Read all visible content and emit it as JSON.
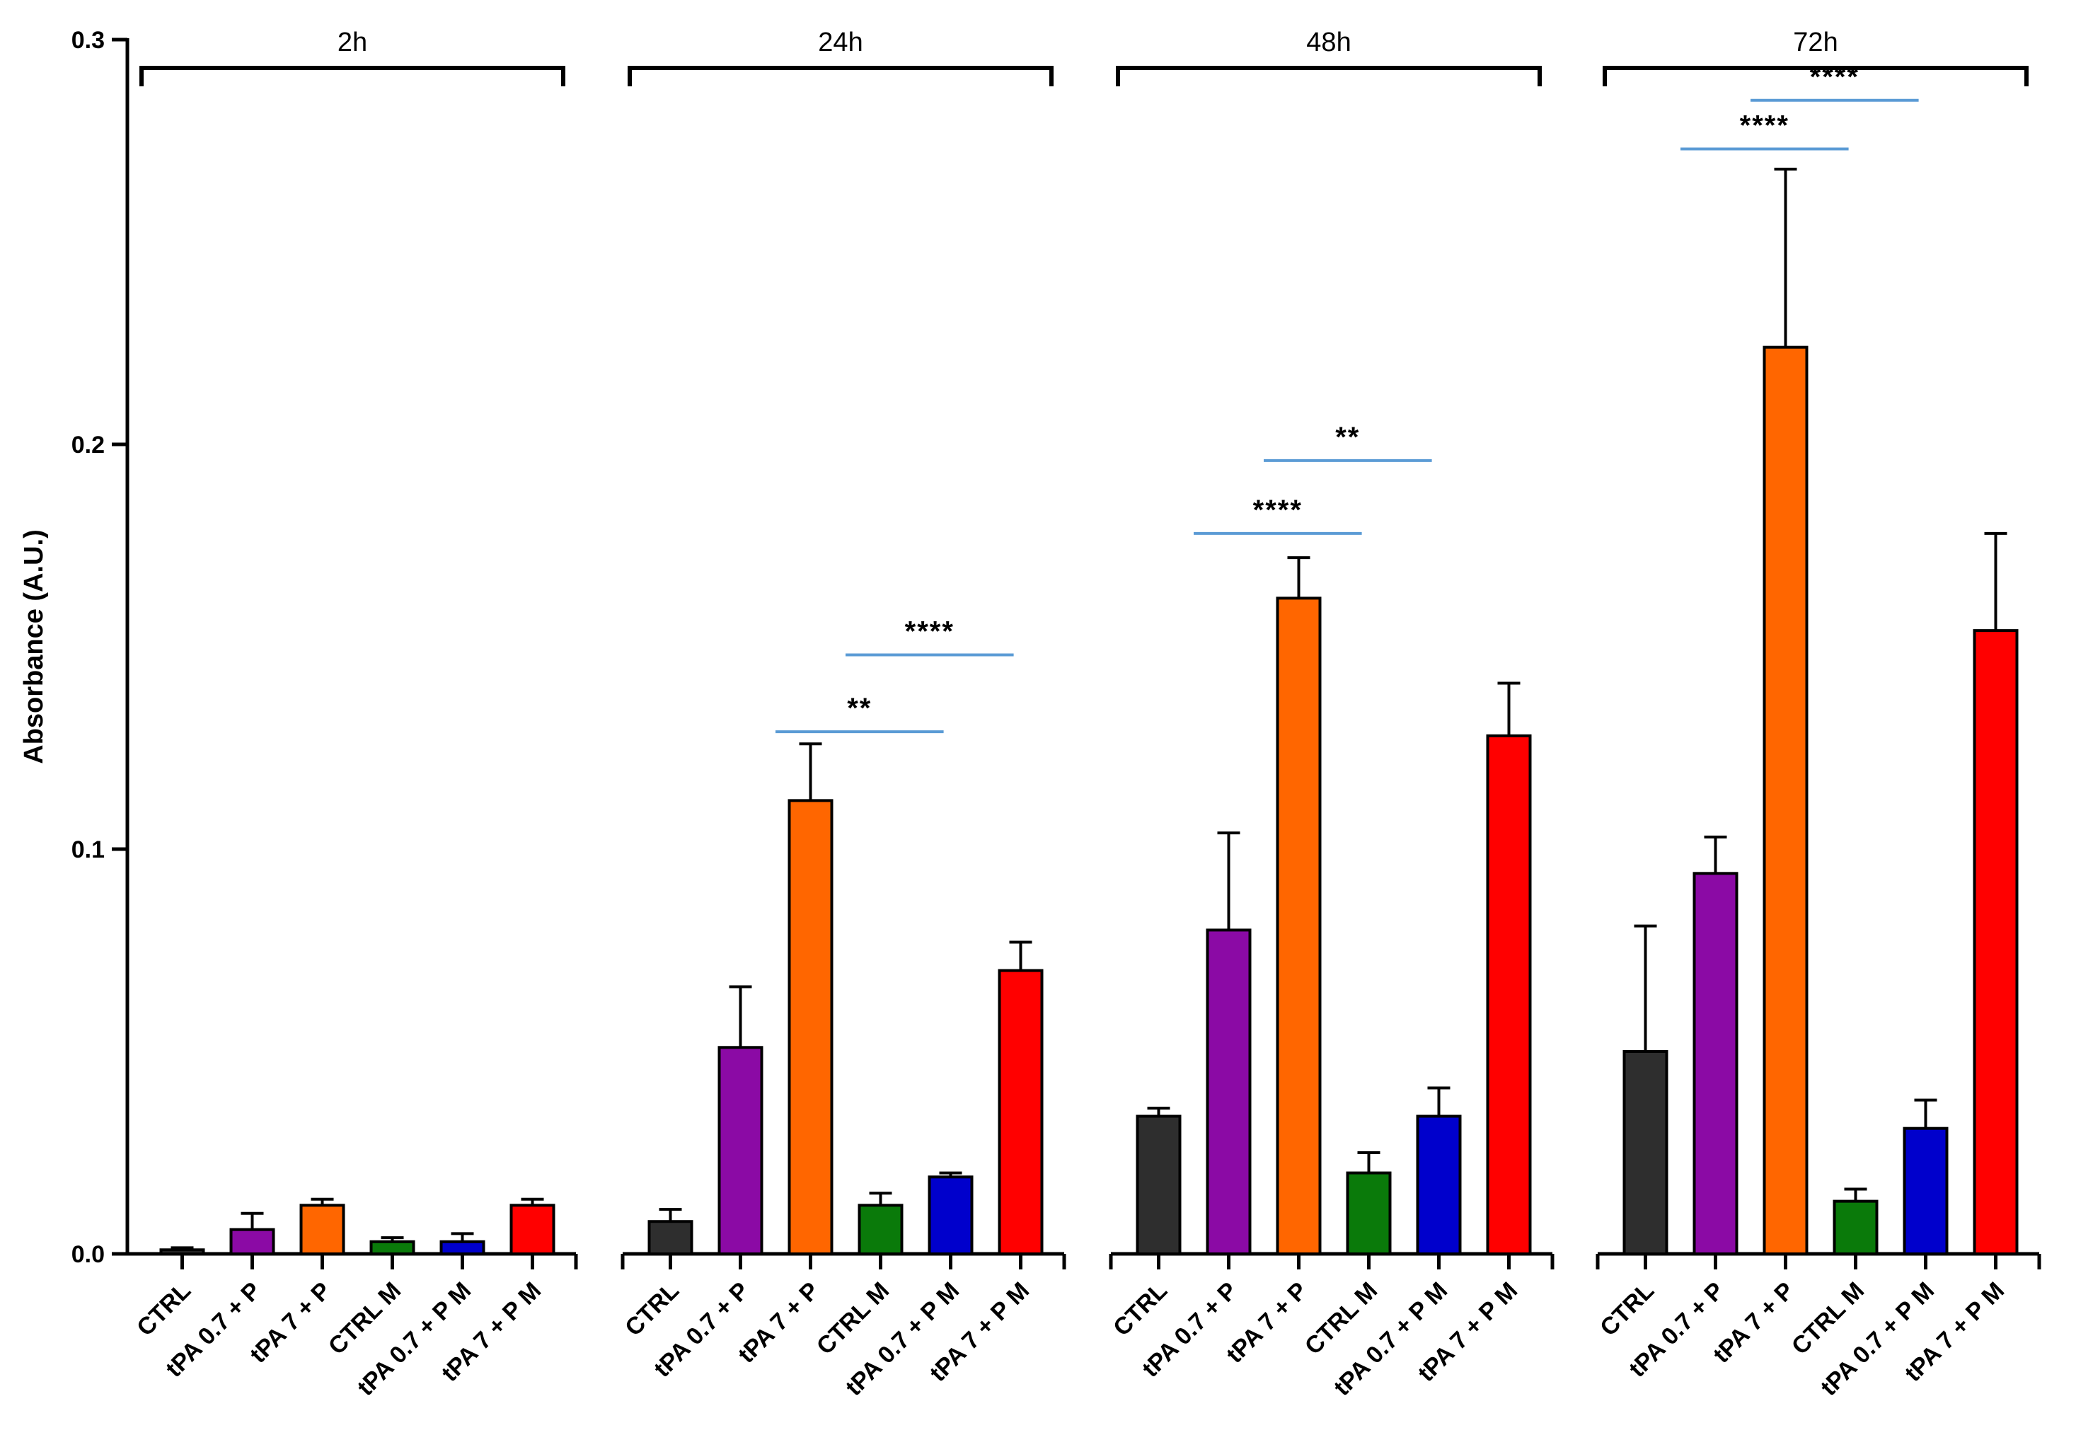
{
  "chart_data": {
    "type": "bar",
    "title": "",
    "xlabel": "",
    "ylabel": "Absorbance (A.U.)",
    "ylim": [
      0,
      0.3
    ],
    "yticks": [
      {
        "value": 0.0,
        "label": "0.0"
      },
      {
        "value": 0.1,
        "label": "0.1"
      },
      {
        "value": 0.2,
        "label": "0.2"
      },
      {
        "value": 0.3,
        "label": "0.3"
      }
    ],
    "categories": [
      "CTRL",
      "tPA 0.7 + P",
      "tPA 7 + P",
      "CTRL M",
      "tPA 0.7 + P M",
      "tPA 7 + P M"
    ],
    "colors": [
      "#2e2e2e",
      "#8b0aa5",
      "#ff6600",
      "#0a7a0a",
      "#0000cc",
      "#ff0000"
    ],
    "significance_color": "#5b9bd5",
    "groups": [
      {
        "label": "2h",
        "values": [
          0.001,
          0.006,
          0.012,
          0.003,
          0.003,
          0.012
        ],
        "errors": [
          0.0005,
          0.004,
          0.0015,
          0.001,
          0.002,
          0.0015
        ],
        "significance": []
      },
      {
        "label": "24h",
        "values": [
          0.008,
          0.051,
          0.112,
          0.012,
          0.019,
          0.07
        ],
        "errors": [
          0.003,
          0.015,
          0.014,
          0.003,
          0.001,
          0.007
        ],
        "significance": [
          {
            "from": 2,
            "to": 4,
            "value": 0.129,
            "label": "**"
          },
          {
            "from": 3,
            "to": 5,
            "value": 0.148,
            "label": "****"
          }
        ]
      },
      {
        "label": "48h",
        "values": [
          0.034,
          0.08,
          0.162,
          0.02,
          0.034,
          0.128
        ],
        "errors": [
          0.002,
          0.024,
          0.01,
          0.005,
          0.007,
          0.013
        ],
        "significance": [
          {
            "from": 1,
            "to": 3,
            "value": 0.178,
            "label": "****"
          },
          {
            "from": 2,
            "to": 4,
            "value": 0.196,
            "label": "**"
          }
        ]
      },
      {
        "label": "72h",
        "values": [
          0.05,
          0.094,
          0.224,
          0.013,
          0.031,
          0.154
        ],
        "errors": [
          0.031,
          0.009,
          0.044,
          0.003,
          0.007,
          0.024
        ],
        "significance": [
          {
            "from": 1,
            "to": 3,
            "value": 0.273,
            "label": "****"
          },
          {
            "from": 2,
            "to": 4,
            "value": 0.285,
            "label": "****"
          }
        ]
      }
    ]
  }
}
